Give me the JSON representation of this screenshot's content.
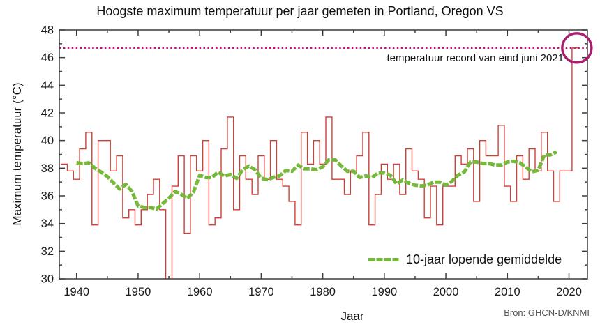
{
  "title": "Hoogste maximum temperatuur per jaar gemeten in Portland, Oregon VS",
  "ylabel": "Maximum temperatuur (°C)",
  "xlabel": "Jaar",
  "source": "Bron: GHCN-D/KNMI",
  "legend": {
    "running_mean_label": "10-jaar lopende gemiddelde"
  },
  "annotation": {
    "record_label": "temperatuur record van eind juni 2021"
  },
  "colors": {
    "series": "#cc4038",
    "running_mean": "#76b93a",
    "record": "#c50f7e",
    "record_circle": "#a81f6e",
    "axis": "#3c3c3c",
    "tick_label": "#1a1a1a",
    "source_text": "#555555"
  },
  "chart_data": {
    "type": "line",
    "title": "Hoogste maximum temperatuur per jaar gemeten in Portland, Oregon VS",
    "xlabel": "Jaar",
    "ylabel": "Maximum temperatuur (°C)",
    "xlim": [
      1937.2,
      2023.0
    ],
    "ylim": [
      30,
      48
    ],
    "x_major_tick_step": 10,
    "x_minor_tick_step": 5,
    "x_major_ticks": [
      1940,
      1950,
      1960,
      1970,
      1980,
      1990,
      2000,
      2010,
      2020
    ],
    "y_major_tick_step": 2,
    "y_minor_tick_step": 1,
    "y_major_ticks": [
      30,
      32,
      34,
      36,
      38,
      40,
      42,
      44,
      46,
      48
    ],
    "grid": false,
    "legend_position": "bottom-right-inside",
    "record_line": {
      "value": 46.7,
      "style": "dotted",
      "label": "temperatuur record van eind juni 2021"
    },
    "record_circle": {
      "year": 2021,
      "value": 46.7
    },
    "series": [
      {
        "name": "hoogste maximum temperatuur per jaar",
        "style": "histeps",
        "start_year": 1938,
        "end_year": 2021,
        "values": [
          38.3,
          37.8,
          37.2,
          39.4,
          40.6,
          33.9,
          40.0,
          40.0,
          37.8,
          38.9,
          34.4,
          35.0,
          33.9,
          35.0,
          36.1,
          37.2,
          35.0,
          29.4,
          36.7,
          38.9,
          33.3,
          38.9,
          37.8,
          40.0,
          33.9,
          34.4,
          39.4,
          41.7,
          35.0,
          38.9,
          37.2,
          36.1,
          38.9,
          37.2,
          40.0,
          37.2,
          36.7,
          35.6,
          33.9,
          40.6,
          38.3,
          40.0,
          38.3,
          41.7,
          37.2,
          37.2,
          36.1,
          37.8,
          38.9,
          40.6,
          33.9,
          36.1,
          38.3,
          37.2,
          38.3,
          36.1,
          39.4,
          37.8,
          37.2,
          34.4,
          36.7,
          33.9,
          36.7,
          36.7,
          38.9,
          38.3,
          39.4,
          35.6,
          40.0,
          38.9,
          38.9,
          41.1,
          36.7,
          35.6,
          38.9,
          37.2,
          39.4,
          37.8,
          40.6,
          37.8,
          35.6,
          37.8,
          37.8,
          46.7
        ]
      },
      {
        "name": "10-jaar lopende gemiddelde",
        "style": "thick-dashed-line",
        "type": "running_mean",
        "window": 10,
        "derived_from_series": 0
      }
    ]
  }
}
